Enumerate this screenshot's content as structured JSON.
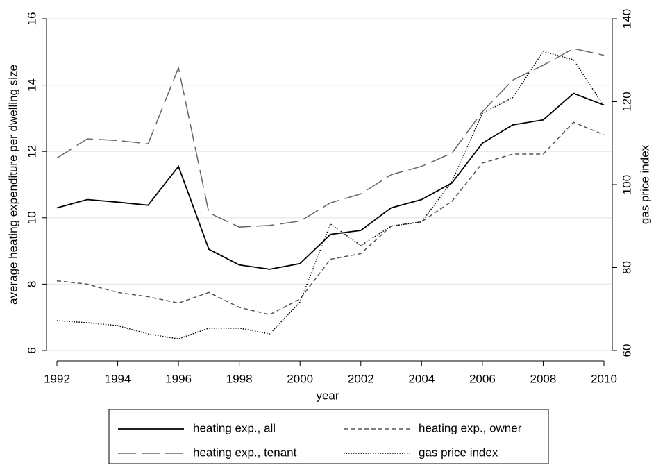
{
  "chart_data": {
    "type": "line",
    "x_label": "year",
    "y_label": "average heating expenditure per dwelling size",
    "y2_label": "gas price index",
    "x": [
      1992,
      1993,
      1994,
      1995,
      1996,
      1997,
      1998,
      1999,
      2000,
      2001,
      2002,
      2003,
      2004,
      2005,
      2006,
      2007,
      2008,
      2009,
      2010
    ],
    "xlim": [
      1992,
      2010
    ],
    "xticks": [
      1992,
      1994,
      1996,
      1998,
      2000,
      2002,
      2004,
      2006,
      2008,
      2010
    ],
    "ylim": [
      6,
      16
    ],
    "yticks": [
      6,
      8,
      10,
      12,
      14,
      16
    ],
    "y2lim": [
      60,
      140
    ],
    "y2ticks": [
      60,
      80,
      100,
      120,
      140
    ],
    "grid": true,
    "legend": "bottom",
    "series": [
      {
        "name": "heating exp., all",
        "color": "#000000",
        "style": "solid",
        "values": [
          10.3,
          10.55,
          10.47,
          10.38,
          11.55,
          9.05,
          8.58,
          8.45,
          8.62,
          9.5,
          9.62,
          10.3,
          10.55,
          11.05,
          12.25,
          12.8,
          12.95,
          13.75,
          13.4
        ]
      },
      {
        "name": "heating exp., owner",
        "color": "#555555",
        "style": "dash",
        "values": [
          8.1,
          8.0,
          7.75,
          7.62,
          7.43,
          7.75,
          7.3,
          7.08,
          7.55,
          8.75,
          8.92,
          9.75,
          9.88,
          10.5,
          11.65,
          11.92,
          11.92,
          12.88,
          12.5
        ]
      },
      {
        "name": "heating exp., tenant",
        "color": "#666666",
        "style": "longdash",
        "values": [
          11.8,
          12.38,
          12.33,
          12.23,
          14.52,
          10.15,
          9.72,
          9.77,
          9.9,
          10.45,
          10.72,
          11.3,
          11.55,
          11.95,
          13.2,
          14.15,
          14.6,
          15.1,
          14.9
        ]
      },
      {
        "name": "gas price index",
        "color": "#000000",
        "style": "dot",
        "axis": "y2",
        "values": [
          67.2,
          66.7,
          66.0,
          64.0,
          62.8,
          65.4,
          65.4,
          64.0,
          71.7,
          90.5,
          85.3,
          90.0,
          91.0,
          100.8,
          117.2,
          121.0,
          132.1,
          130.1,
          118.9
        ]
      }
    ]
  }
}
